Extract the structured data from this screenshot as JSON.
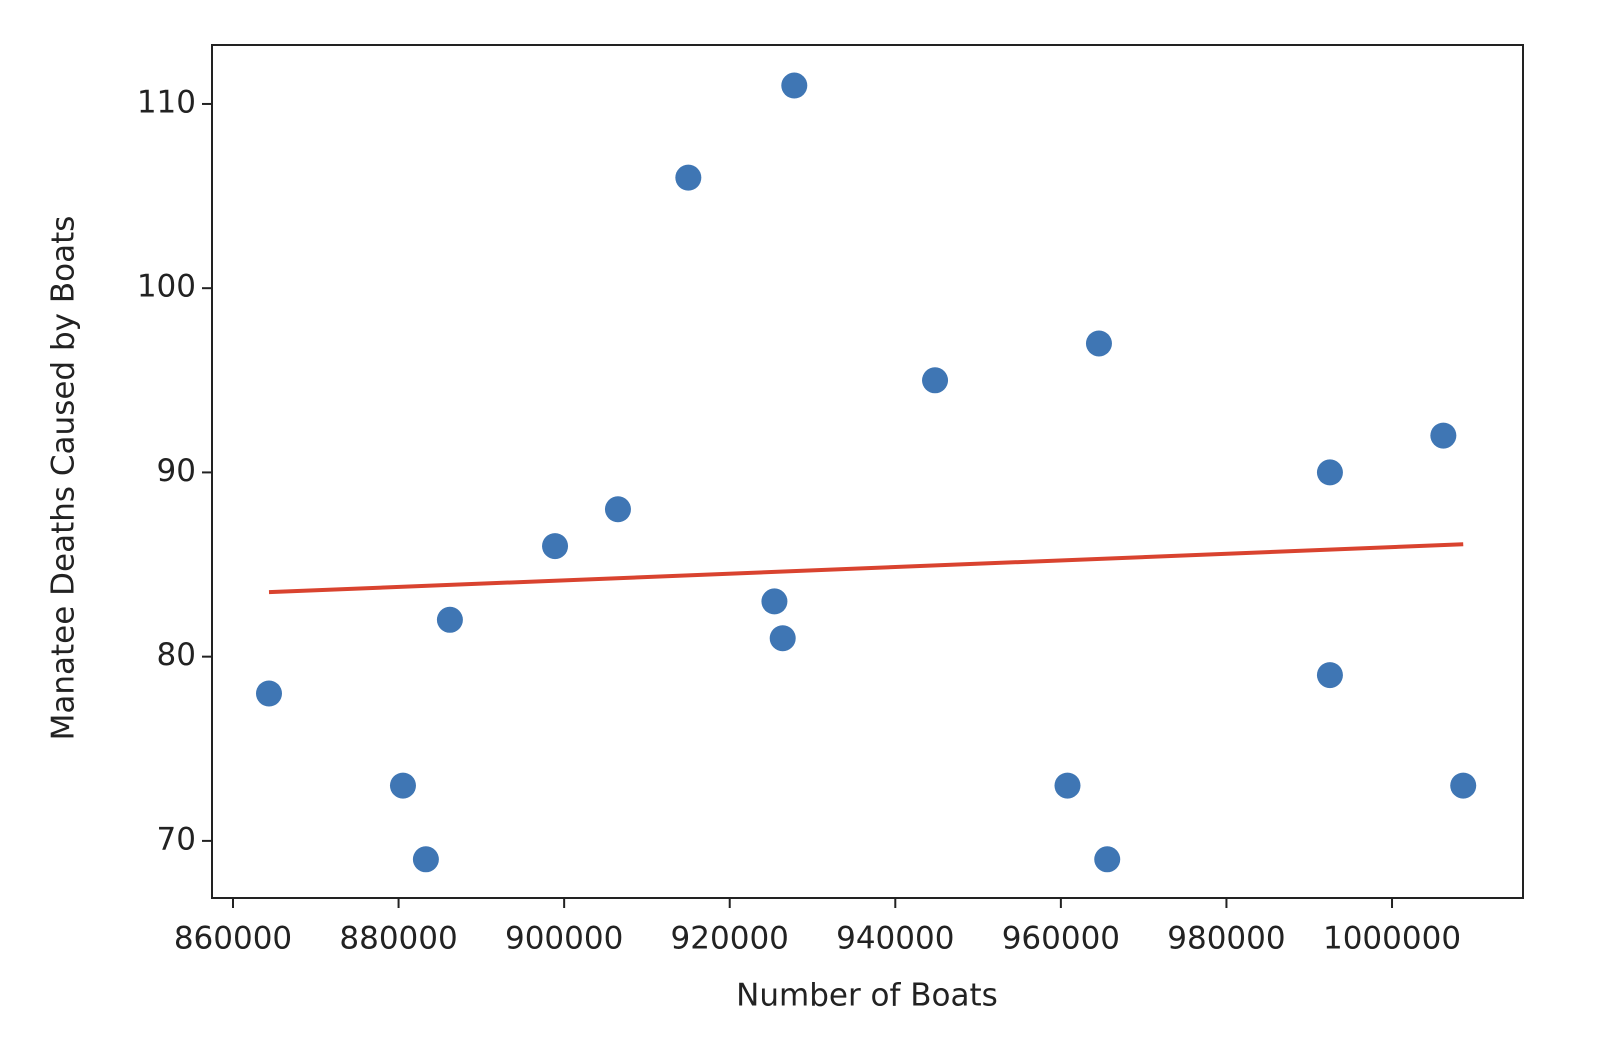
{
  "chart_data": {
    "type": "scatter",
    "x_label": "Number of Boats",
    "y_label": "Manatee Deaths Caused by Boats",
    "xlim": [
      857464,
      1015821
    ],
    "ylim": [
      66.9,
      113.2
    ],
    "xticks": [
      860000,
      880000,
      900000,
      920000,
      940000,
      960000,
      980000,
      1000000
    ],
    "yticks": [
      70,
      80,
      90,
      100,
      110
    ],
    "grid": false,
    "series": [
      {
        "type": "scatter",
        "color": "#3f76b4",
        "x": [
          864348,
          880531,
          883300,
          886200,
          898900,
          906500,
          915000,
          925400,
          926400,
          927800,
          944800,
          960800,
          964600,
          965600,
          992500,
          992500,
          1006200,
          1008600
        ],
        "values": [
          78,
          73,
          69,
          82,
          86,
          88,
          106,
          83,
          81,
          111,
          95,
          73,
          97,
          69,
          90,
          79,
          92,
          73
        ]
      },
      {
        "type": "line",
        "color": "#d9432f",
        "x": [
          864348,
          1008600
        ],
        "values": [
          83.5,
          86.1
        ]
      }
    ]
  }
}
